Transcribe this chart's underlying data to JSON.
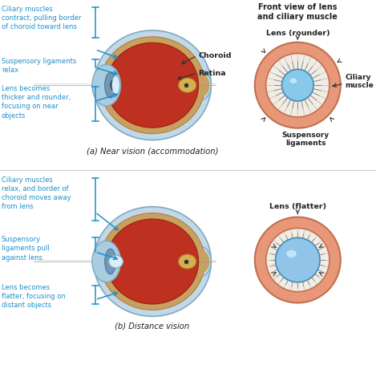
{
  "bg_color": "#ffffff",
  "text_color_blue": "#1e90cc",
  "text_color_black": "#222222",
  "arrow_color_blue": "#1e90cc",
  "arrow_color_black": "#333333",
  "top_title": "Front view of lens\nand ciliary muscle",
  "near_caption": "(a) Near vision (accommodation)",
  "far_caption": "(b) Distance vision",
  "lens_rounder_label": "Lens (rounder)",
  "lens_flatter_label": "Lens (flatter)",
  "ciliary_muscle_label": "Ciliary\nmuscle",
  "suspensory_label": "Suspensory\nligaments",
  "choroid_label": "Choroid",
  "retina_label": "Retina",
  "near_labels": [
    "Ciliary muscles\ncontract, pulling border\nof choroid toward lens",
    "Suspensory ligaments\nrelax",
    "Lens becomes\nthicker and rounder,\nfocusing on near\nobjects"
  ],
  "far_labels": [
    "Ciliary muscles\nrelax, and border of\nchoroid moves away\nfrom lens",
    "Suspensory\nligaments pull\nagainst lens",
    "Lens becomes\nflatter, focusing on\ndistant objects"
  ],
  "eye_outer_color": "#b8d8e8",
  "eye_choroid_color": "#c8a878",
  "eye_retina_color": "#b83020",
  "eye_nerve_color": "#d4a840",
  "eye_cornea_color": "#a8cce0",
  "front_outer_color": "#e89878",
  "front_white_color": "#f5f0e8",
  "front_lens_near_color": "#88c8e8",
  "front_lens_far_color": "#90c4e8",
  "divider_color": "#cccccc"
}
